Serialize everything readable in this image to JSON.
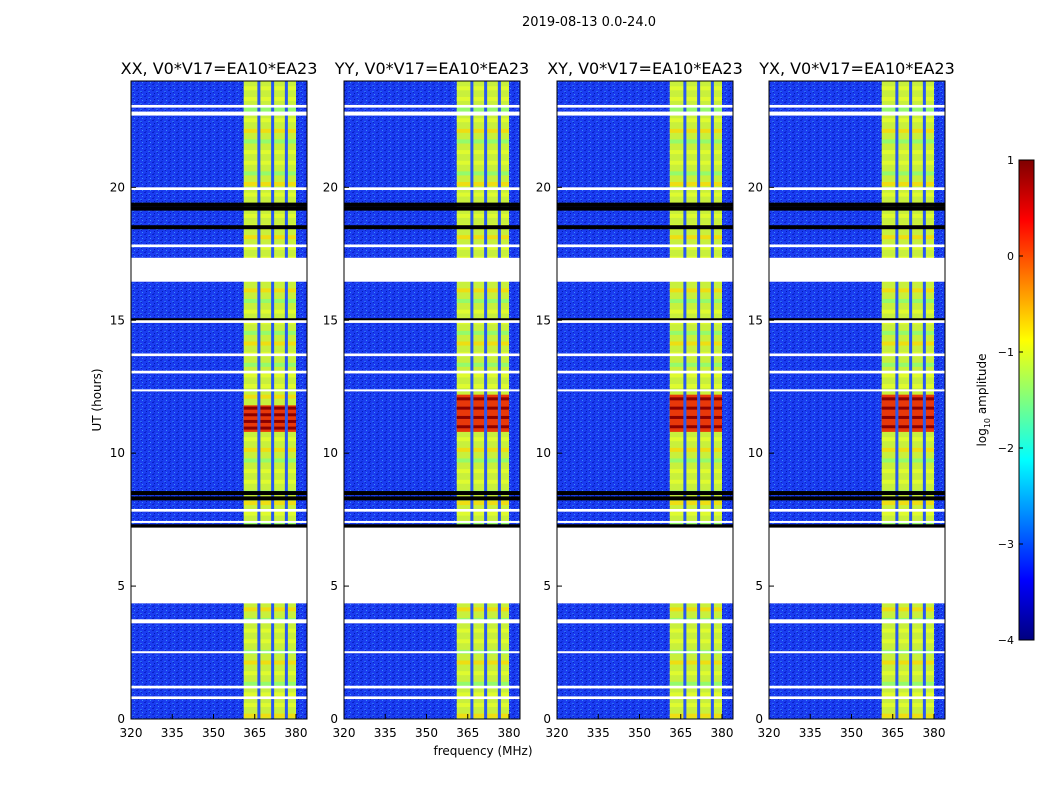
{
  "figure_title": "2019-08-13 0.0-24.0",
  "chart_data": [
    {
      "type": "heatmap",
      "title": "XX, V0*V17=EA10*EA23",
      "xlabel": "",
      "ylabel": "UT (hours)",
      "xlim": [
        320,
        384
      ],
      "ylim": [
        0,
        24
      ],
      "xticks": [
        "320",
        "335",
        "350",
        "365",
        "380"
      ],
      "yticks": [
        "0",
        "5",
        "10",
        "15",
        "20"
      ],
      "bright_band_mhz": [
        361,
        380
      ],
      "strong_bursts_ut": [
        [
          10.8,
          11.8
        ]
      ]
    },
    {
      "type": "heatmap",
      "title": "YY, V0*V17=EA10*EA23",
      "xlabel": "frequency (MHz)",
      "ylabel": "",
      "xlim": [
        320,
        384
      ],
      "ylim": [
        0,
        24
      ],
      "xticks": [
        "320",
        "335",
        "350",
        "365",
        "380"
      ],
      "yticks": [
        "0",
        "5",
        "10",
        "15",
        "20"
      ],
      "bright_band_mhz": [
        361,
        380
      ],
      "strong_bursts_ut": [
        [
          10.8,
          12.2
        ]
      ]
    },
    {
      "type": "heatmap",
      "title": "XY, V0*V17=EA10*EA23",
      "xlabel": "",
      "ylabel": "",
      "xlim": [
        320,
        384
      ],
      "ylim": [
        0,
        24
      ],
      "xticks": [
        "320",
        "335",
        "350",
        "365",
        "380"
      ],
      "yticks": [
        "0",
        "5",
        "10",
        "15",
        "20"
      ],
      "bright_band_mhz": [
        361,
        380
      ],
      "strong_bursts_ut": [
        [
          10.8,
          12.2
        ]
      ]
    },
    {
      "type": "heatmap",
      "title": "YX, V0*V17=EA10*EA23",
      "xlabel": "",
      "ylabel": "",
      "xlim": [
        320,
        384
      ],
      "ylim": [
        0,
        24
      ],
      "xticks": [
        "320",
        "335",
        "350",
        "365",
        "380"
      ],
      "yticks": [
        "0",
        "5",
        "10",
        "15",
        "20"
      ],
      "bright_band_mhz": [
        361,
        380
      ],
      "strong_bursts_ut": [
        [
          10.8,
          12.2
        ]
      ]
    }
  ],
  "shared": {
    "flagged_ut_ranges": [
      [
        0.75,
        0.85
      ],
      [
        1.15,
        1.25
      ],
      [
        2.5,
        2.55
      ],
      [
        3.6,
        3.75
      ],
      [
        4.35,
        7.2
      ],
      [
        7.4,
        7.45
      ],
      [
        7.8,
        7.9
      ],
      [
        12.35,
        12.4
      ],
      [
        13.0,
        13.1
      ],
      [
        13.65,
        13.75
      ],
      [
        14.9,
        15.0
      ],
      [
        16.45,
        17.35
      ],
      [
        17.75,
        17.85
      ],
      [
        19.9,
        20.0
      ],
      [
        22.7,
        22.85
      ],
      [
        23.0,
        23.1
      ]
    ],
    "dark_ut_lines": [
      7.25,
      8.3,
      8.5,
      15.0,
      18.5,
      19.2,
      19.35
    ],
    "channel_gaps_mhz": [
      366.5,
      371.5,
      376.5
    ]
  },
  "colorbar": {
    "label": "log10 amplitude",
    "label_main": "log",
    "label_sub": "10",
    "label_rest": " amplitude",
    "range": [
      -4,
      1
    ],
    "ticks": [
      "1",
      "0",
      "−1",
      "−2",
      "−3",
      "−4"
    ],
    "tick_values": [
      1,
      0,
      -1,
      -2,
      -3,
      -4
    ],
    "colormap": [
      "#00007f",
      "#0000ff",
      "#007fff",
      "#00ffff",
      "#7fff7f",
      "#ffff00",
      "#ff7f00",
      "#ff0000",
      "#7f0000"
    ]
  }
}
